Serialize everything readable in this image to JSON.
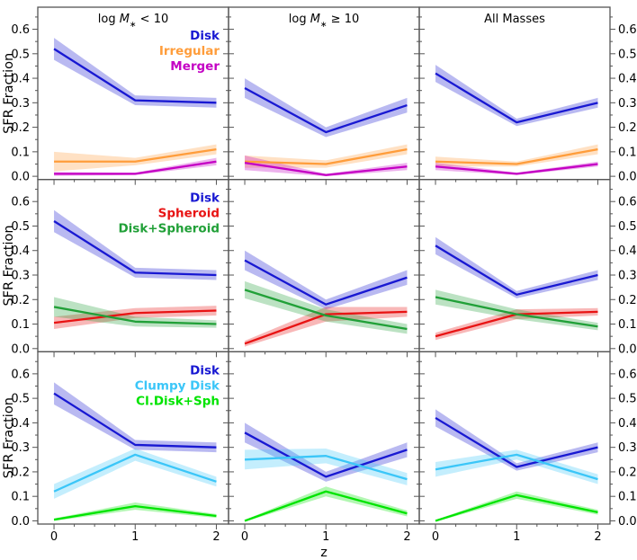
{
  "figure": {
    "ylabel": "SFR Fraction",
    "xlabel": "z",
    "col_titles": [
      "log M* < 10",
      "log M* ≥ 10",
      "All Masses"
    ],
    "xtick_labels": [
      "0",
      "1",
      "2"
    ],
    "ytick_labels": [
      "0.0",
      "0.1",
      "0.2",
      "0.3",
      "0.4",
      "0.5",
      "0.6"
    ]
  },
  "chart_data": {
    "type": "line",
    "title": "",
    "xlabel": "z",
    "ylabel": "SFR Fraction",
    "x": [
      0,
      1,
      2
    ],
    "xticks": [
      0,
      1,
      2
    ],
    "yticks": [
      0.0,
      0.1,
      0.2,
      0.3,
      0.4,
      0.5,
      0.6
    ],
    "xlim": [
      -0.2,
      2.15
    ],
    "ylim": [
      -0.013,
      0.69
    ],
    "grid": false,
    "legend_position": "upper-right-first-panel-of-each-row",
    "band_style": "shaded error band around each line",
    "columns": [
      "log M* < 10",
      "log M* ≥ 10",
      "All Masses"
    ],
    "rows": [
      {
        "legend": [
          "Disk",
          "Irregular",
          "Merger"
        ],
        "panels": [
          {
            "column": "log M* < 10",
            "series": [
              {
                "name": "Disk",
                "color": "#1818d2",
                "values": [
                  0.52,
                  0.31,
                  0.3
                ],
                "err": [
                  0.045,
                  0.02,
                  0.02
                ]
              },
              {
                "name": "Irregular",
                "color": "#ff9d3b",
                "values": [
                  0.06,
                  0.06,
                  0.11
                ],
                "err": [
                  0.04,
                  0.015,
                  0.02
                ]
              },
              {
                "name": "Merger",
                "color": "#c400c4",
                "values": [
                  0.01,
                  0.01,
                  0.06
                ],
                "err": [
                  0.008,
                  0.005,
                  0.015
                ]
              }
            ]
          },
          {
            "column": "log M* >= 10",
            "series": [
              {
                "name": "Disk",
                "color": "#1818d2",
                "values": [
                  0.36,
                  0.18,
                  0.29
                ],
                "err": [
                  0.04,
                  0.02,
                  0.03
                ]
              },
              {
                "name": "Irregular",
                "color": "#ff9d3b",
                "values": [
                  0.06,
                  0.05,
                  0.11
                ],
                "err": [
                  0.025,
                  0.015,
                  0.02
                ]
              },
              {
                "name": "Merger",
                "color": "#c400c4",
                "values": [
                  0.055,
                  0.005,
                  0.04
                ],
                "err": [
                  0.03,
                  0.005,
                  0.015
                ]
              }
            ]
          },
          {
            "column": "All Masses",
            "series": [
              {
                "name": "Disk",
                "color": "#1818d2",
                "values": [
                  0.42,
                  0.22,
                  0.3
                ],
                "err": [
                  0.035,
                  0.015,
                  0.02
                ]
              },
              {
                "name": "Irregular",
                "color": "#ff9d3b",
                "values": [
                  0.06,
                  0.05,
                  0.11
                ],
                "err": [
                  0.02,
                  0.01,
                  0.02
                ]
              },
              {
                "name": "Merger",
                "color": "#c400c4",
                "values": [
                  0.04,
                  0.01,
                  0.05
                ],
                "err": [
                  0.015,
                  0.005,
                  0.01
                ]
              }
            ]
          }
        ]
      },
      {
        "legend": [
          "Disk",
          "Spheroid",
          "Disk+Spheroid"
        ],
        "panels": [
          {
            "column": "log M* < 10",
            "series": [
              {
                "name": "Disk",
                "color": "#1818d2",
                "values": [
                  0.52,
                  0.31,
                  0.3
                ],
                "err": [
                  0.045,
                  0.02,
                  0.02
                ]
              },
              {
                "name": "Spheroid",
                "color": "#e81414",
                "values": [
                  0.105,
                  0.145,
                  0.155
                ],
                "err": [
                  0.025,
                  0.02,
                  0.02
                ]
              },
              {
                "name": "Disk+Spheroid",
                "color": "#21a038",
                "values": [
                  0.17,
                  0.11,
                  0.1
                ],
                "err": [
                  0.04,
                  0.02,
                  0.015
                ]
              }
            ]
          },
          {
            "column": "log M* >= 10",
            "series": [
              {
                "name": "Disk",
                "color": "#1818d2",
                "values": [
                  0.36,
                  0.18,
                  0.29
                ],
                "err": [
                  0.04,
                  0.02,
                  0.03
                ]
              },
              {
                "name": "Spheroid",
                "color": "#e81414",
                "values": [
                  0.02,
                  0.14,
                  0.15
                ],
                "err": [
                  0.012,
                  0.03,
                  0.02
                ]
              },
              {
                "name": "Disk+Spheroid",
                "color": "#21a038",
                "values": [
                  0.24,
                  0.135,
                  0.08
                ],
                "err": [
                  0.035,
                  0.025,
                  0.02
                ]
              }
            ]
          },
          {
            "column": "All Masses",
            "series": [
              {
                "name": "Disk",
                "color": "#1818d2",
                "values": [
                  0.42,
                  0.22,
                  0.3
                ],
                "err": [
                  0.035,
                  0.015,
                  0.02
                ]
              },
              {
                "name": "Spheroid",
                "color": "#e81414",
                "values": [
                  0.05,
                  0.14,
                  0.15
                ],
                "err": [
                  0.015,
                  0.02,
                  0.015
                ]
              },
              {
                "name": "Disk+Spheroid",
                "color": "#21a038",
                "values": [
                  0.21,
                  0.14,
                  0.09
                ],
                "err": [
                  0.03,
                  0.02,
                  0.015
                ]
              }
            ]
          }
        ]
      },
      {
        "legend": [
          "Disk",
          "Clumpy Disk",
          "Cl.Disk+Sph"
        ],
        "panels": [
          {
            "column": "log M* < 10",
            "series": [
              {
                "name": "Disk",
                "color": "#1818d2",
                "values": [
                  0.52,
                  0.31,
                  0.3
                ],
                "err": [
                  0.045,
                  0.02,
                  0.02
                ]
              },
              {
                "name": "Clumpy Disk",
                "color": "#3bc6f8",
                "values": [
                  0.12,
                  0.27,
                  0.16
                ],
                "err": [
                  0.03,
                  0.025,
                  0.02
                ]
              },
              {
                "name": "Cl.Disk+Sph",
                "color": "#00e400",
                "values": [
                  0.005,
                  0.06,
                  0.02
                ],
                "err": [
                  0.005,
                  0.015,
                  0.008
                ]
              }
            ]
          },
          {
            "column": "log M* >= 10",
            "series": [
              {
                "name": "Disk",
                "color": "#1818d2",
                "values": [
                  0.36,
                  0.18,
                  0.29
                ],
                "err": [
                  0.04,
                  0.02,
                  0.03
                ]
              },
              {
                "name": "Clumpy Disk",
                "color": "#3bc6f8",
                "values": [
                  0.25,
                  0.265,
                  0.17
                ],
                "err": [
                  0.04,
                  0.03,
                  0.025
                ]
              },
              {
                "name": "Cl.Disk+Sph",
                "color": "#00e400",
                "values": [
                  0.0,
                  0.12,
                  0.03
                ],
                "err": [
                  0.004,
                  0.02,
                  0.012
                ]
              }
            ]
          },
          {
            "column": "All Masses",
            "series": [
              {
                "name": "Disk",
                "color": "#1818d2",
                "values": [
                  0.42,
                  0.22,
                  0.3
                ],
                "err": [
                  0.035,
                  0.015,
                  0.02
                ]
              },
              {
                "name": "Clumpy Disk",
                "color": "#3bc6f8",
                "values": [
                  0.21,
                  0.27,
                  0.17
                ],
                "err": [
                  0.03,
                  0.02,
                  0.02
                ]
              },
              {
                "name": "Cl.Disk+Sph",
                "color": "#00e400",
                "values": [
                  0.0,
                  0.105,
                  0.035
                ],
                "err": [
                  0.004,
                  0.015,
                  0.01
                ]
              }
            ]
          }
        ]
      }
    ],
    "colors": {
      "disk": "#1818d2",
      "irregular": "#ff9d3b",
      "merger": "#c400c4",
      "spheroid": "#e81414",
      "disk_spheroid": "#21a038",
      "clumpy_disk": "#3bc6f8",
      "cl_disk_sph": "#00e400",
      "spine": "#555555",
      "text": "#000000"
    }
  }
}
